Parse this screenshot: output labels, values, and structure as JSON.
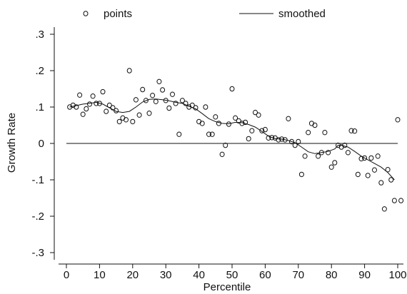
{
  "chart_data": {
    "type": "scatter",
    "title": "",
    "xlabel": "Percentile",
    "ylabel": "Growth Rate",
    "xlim": [
      -1,
      101
    ],
    "ylim": [
      -0.3,
      0.3
    ],
    "x_ticks": [
      0,
      10,
      20,
      30,
      40,
      50,
      60,
      70,
      80,
      90,
      100
    ],
    "x_tick_labels": [
      "0",
      "10",
      "20",
      "30",
      "40",
      "50",
      "60",
      "70",
      "80",
      "90",
      "100"
    ],
    "y_ticks": [
      0.3,
      0.2,
      0.1,
      0,
      -0.1,
      -0.2,
      -0.3
    ],
    "y_tick_labels": [
      ".3",
      ".2",
      ".1",
      "0",
      "-.1",
      "-.2",
      "-.3"
    ],
    "legend_position": "top",
    "legend": [
      {
        "label": "points",
        "marker": "circle"
      },
      {
        "label": "smoothed",
        "marker": "line"
      }
    ],
    "reference_line_y": 0,
    "series": [
      {
        "name": "points",
        "kind": "scatter",
        "points": [
          [
            1,
            0.1
          ],
          [
            2,
            0.105
          ],
          [
            3,
            0.1
          ],
          [
            4,
            0.133
          ],
          [
            5,
            0.08
          ],
          [
            6,
            0.095
          ],
          [
            7,
            0.108
          ],
          [
            8,
            0.13
          ],
          [
            9,
            0.11
          ],
          [
            10,
            0.11
          ],
          [
            11,
            0.142
          ],
          [
            12,
            0.088
          ],
          [
            13,
            0.105
          ],
          [
            14,
            0.098
          ],
          [
            15,
            0.09
          ],
          [
            16,
            0.06
          ],
          [
            17,
            0.07
          ],
          [
            18,
            0.065
          ],
          [
            19,
            0.2
          ],
          [
            20,
            0.06
          ],
          [
            21,
            0.12
          ],
          [
            22,
            0.078
          ],
          [
            23,
            0.148
          ],
          [
            24,
            0.118
          ],
          [
            25,
            0.083
          ],
          [
            26,
            0.132
          ],
          [
            27,
            0.115
          ],
          [
            28,
            0.17
          ],
          [
            29,
            0.147
          ],
          [
            30,
            0.118
          ],
          [
            31,
            0.097
          ],
          [
            32,
            0.135
          ],
          [
            33,
            0.11
          ],
          [
            34,
            0.025
          ],
          [
            35,
            0.118
          ],
          [
            36,
            0.11
          ],
          [
            37,
            0.1
          ],
          [
            38,
            0.105
          ],
          [
            39,
            0.098
          ],
          [
            40,
            0.06
          ],
          [
            41,
            0.055
          ],
          [
            42,
            0.1
          ],
          [
            43,
            0.025
          ],
          [
            44,
            0.025
          ],
          [
            45,
            0.073
          ],
          [
            46,
            0.055
          ],
          [
            47,
            -0.03
          ],
          [
            48,
            -0.005
          ],
          [
            49,
            0.053
          ],
          [
            50,
            0.15
          ],
          [
            51,
            0.07
          ],
          [
            52,
            0.062
          ],
          [
            53,
            0.055
          ],
          [
            54,
            0.058
          ],
          [
            55,
            0.013
          ],
          [
            56,
            0.035
          ],
          [
            57,
            0.085
          ],
          [
            58,
            0.078
          ],
          [
            59,
            0.035
          ],
          [
            60,
            0.038
          ],
          [
            61,
            0.015
          ],
          [
            62,
            0.016
          ],
          [
            63,
            0.015
          ],
          [
            64,
            0.01
          ],
          [
            65,
            0.012
          ],
          [
            66,
            0.01
          ],
          [
            67,
            0.068
          ],
          [
            68,
            0.005
          ],
          [
            69,
            -0.005
          ],
          [
            70,
            0.005
          ],
          [
            71,
            -0.085
          ],
          [
            72,
            -0.035
          ],
          [
            73,
            0.03
          ],
          [
            74,
            0.055
          ],
          [
            75,
            0.05
          ],
          [
            76,
            -0.035
          ],
          [
            77,
            -0.025
          ],
          [
            78,
            0.03
          ],
          [
            79,
            -0.025
          ],
          [
            80,
            -0.065
          ],
          [
            81,
            -0.053
          ],
          [
            82,
            -0.005
          ],
          [
            83,
            -0.01
          ],
          [
            84,
            -0.005
          ],
          [
            85,
            -0.025
          ],
          [
            86,
            0.035
          ],
          [
            87,
            0.034
          ],
          [
            88,
            -0.085
          ],
          [
            89,
            -0.042
          ],
          [
            90,
            -0.04
          ],
          [
            91,
            -0.088
          ],
          [
            92,
            -0.04
          ],
          [
            93,
            -0.073
          ],
          [
            94,
            -0.035
          ],
          [
            95,
            -0.108
          ],
          [
            96,
            -0.18
          ],
          [
            97,
            -0.072
          ],
          [
            98,
            -0.1
          ],
          [
            99,
            -0.157
          ],
          [
            100,
            0.065
          ],
          [
            101,
            -0.157
          ]
        ]
      },
      {
        "name": "smoothed",
        "kind": "line",
        "points": [
          [
            1,
            0.1
          ],
          [
            3,
            0.104
          ],
          [
            5,
            0.108
          ],
          [
            7,
            0.11
          ],
          [
            9,
            0.113
          ],
          [
            11,
            0.108
          ],
          [
            13,
            0.098
          ],
          [
            15,
            0.088
          ],
          [
            17,
            0.085
          ],
          [
            19,
            0.088
          ],
          [
            21,
            0.1
          ],
          [
            23,
            0.114
          ],
          [
            25,
            0.121
          ],
          [
            27,
            0.122
          ],
          [
            29,
            0.12
          ],
          [
            31,
            0.117
          ],
          [
            33,
            0.113
          ],
          [
            35,
            0.11
          ],
          [
            37,
            0.102
          ],
          [
            39,
            0.095
          ],
          [
            41,
            0.082
          ],
          [
            43,
            0.068
          ],
          [
            45,
            0.06
          ],
          [
            47,
            0.055
          ],
          [
            49,
            0.054
          ],
          [
            51,
            0.058
          ],
          [
            53,
            0.057
          ],
          [
            55,
            0.052
          ],
          [
            57,
            0.045
          ],
          [
            59,
            0.033
          ],
          [
            61,
            0.02
          ],
          [
            63,
            0.013
          ],
          [
            65,
            0.012
          ],
          [
            67,
            0.008
          ],
          [
            69,
            0.002
          ],
          [
            71,
            -0.01
          ],
          [
            73,
            -0.023
          ],
          [
            75,
            -0.028
          ],
          [
            77,
            -0.025
          ],
          [
            79,
            -0.022
          ],
          [
            81,
            -0.015
          ],
          [
            82,
            -0.005
          ],
          [
            83,
            -0.005
          ],
          [
            85,
            -0.01
          ],
          [
            87,
            -0.022
          ],
          [
            89,
            -0.035
          ],
          [
            91,
            -0.045
          ],
          [
            93,
            -0.055
          ],
          [
            95,
            -0.065
          ],
          [
            97,
            -0.08
          ],
          [
            99,
            -0.1
          ]
        ]
      }
    ]
  }
}
